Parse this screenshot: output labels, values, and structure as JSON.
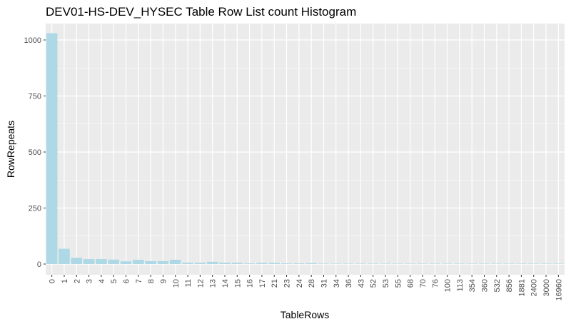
{
  "chart_data": {
    "type": "bar",
    "title": "DEV01-HS-DEV_HYSEC Table Row List count Histogram",
    "xlabel": "TableRows",
    "ylabel": "RowRepeats",
    "ylim": [
      0,
      1090
    ],
    "yticks": [
      0,
      250,
      500,
      750,
      1000
    ],
    "ytick_labels": [
      "0",
      "250",
      "500",
      "750",
      "1000"
    ],
    "grid": true,
    "legend": "none",
    "colors": {
      "bar": "#add8e6",
      "panel": "#ebebeb",
      "grid": "#ffffff",
      "tick_text": "#4d4d4d"
    },
    "categories": [
      "0",
      "1",
      "2",
      "3",
      "4",
      "5",
      "6",
      "7",
      "8",
      "9",
      "10",
      "11",
      "12",
      "13",
      "14",
      "15",
      "16",
      "17",
      "21",
      "23",
      "24",
      "28",
      "31",
      "34",
      "36",
      "43",
      "52",
      "53",
      "55",
      "68",
      "70",
      "76",
      "100",
      "113",
      "354",
      "360",
      "532",
      "856",
      "1881",
      "2400",
      "3000",
      "16960"
    ],
    "values": [
      1030,
      68,
      28,
      22,
      22,
      20,
      12,
      19,
      13,
      13,
      19,
      6,
      6,
      10,
      6,
      6,
      3,
      5,
      5,
      3,
      3,
      4,
      2,
      2,
      2,
      2,
      2,
      2,
      2,
      2,
      2,
      2,
      2,
      2,
      2,
      2,
      2,
      2,
      2,
      2,
      2,
      2
    ]
  }
}
